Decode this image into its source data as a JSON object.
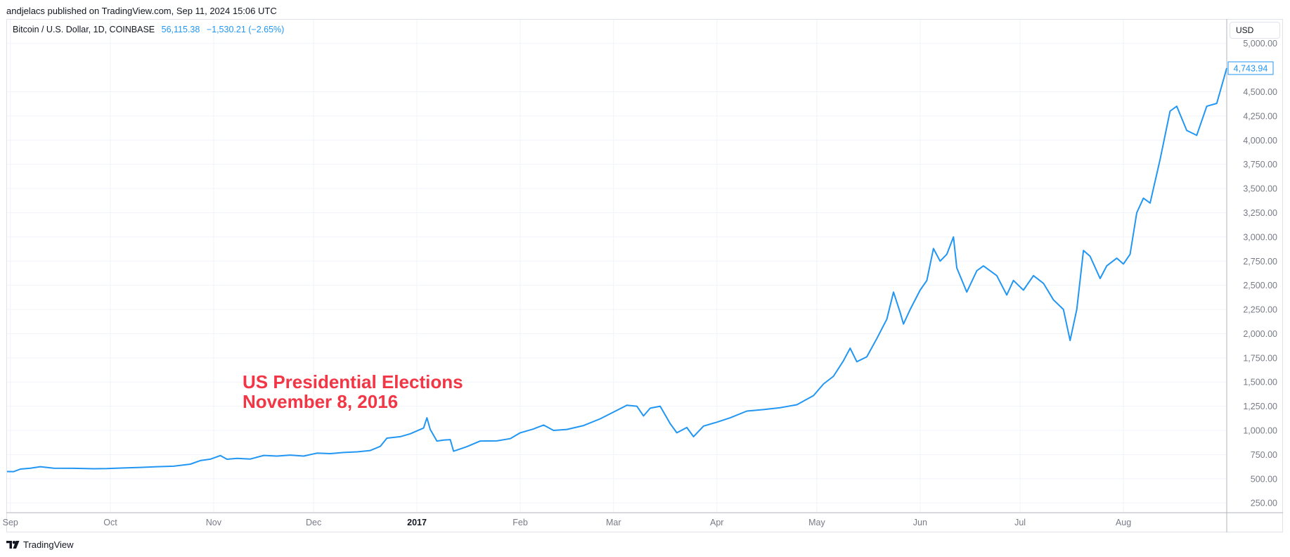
{
  "header": {
    "published": "andjelacs published on TradingView.com, Sep 11, 2024 15:06 UTC"
  },
  "legend": {
    "symbol": "Bitcoin / U.S. Dollar, 1D, COINBASE",
    "price": "56,115.38",
    "change": "−1,530.21 (−2.65%)"
  },
  "currency_button": {
    "label": "USD"
  },
  "footer": {
    "brand": "TradingView"
  },
  "colors": {
    "line": "#2196f3",
    "annotation": "#f23645",
    "grid": "#f0f3fa"
  },
  "annotation": {
    "line1": "US Presidential Elections",
    "line2": "November 8, 2016"
  },
  "chart_data": {
    "type": "line",
    "title": "",
    "xlabel": "",
    "ylabel": "",
    "x_ticks": [
      "Sep",
      "Oct",
      "Nov",
      "Dec",
      "2017",
      "Feb",
      "Mar",
      "Apr",
      "May",
      "Jun",
      "Jul",
      "Aug"
    ],
    "x_tick_dates": [
      "2016-09-01",
      "2016-10-01",
      "2016-11-01",
      "2016-12-01",
      "2017-01-01",
      "2017-02-01",
      "2017-03-01",
      "2017-04-01",
      "2017-05-01",
      "2017-06-01",
      "2017-07-01",
      "2017-08-01"
    ],
    "y_ticks": [
      "250.00",
      "500.00",
      "750.00",
      "1,000.00",
      "1,250.00",
      "1,500.00",
      "1,750.00",
      "2,000.00",
      "2,250.00",
      "2,500.00",
      "2,750.00",
      "3,000.00",
      "3,250.00",
      "3,500.00",
      "3,750.00",
      "4,000.00",
      "4,250.00",
      "4,500.00",
      "5,000.00"
    ],
    "y_tick_values": [
      250,
      500,
      750,
      1000,
      1250,
      1500,
      1750,
      2000,
      2250,
      2500,
      2750,
      3000,
      3250,
      3500,
      3750,
      4000,
      4250,
      4500,
      5000
    ],
    "last_value_label": "4,743.94",
    "ylim": [
      150,
      5000
    ],
    "grid": true,
    "series": [
      {
        "points": [
          [
            "2016-08-31",
            575
          ],
          [
            "2016-09-02",
            574
          ],
          [
            "2016-09-04",
            600
          ],
          [
            "2016-09-07",
            610
          ],
          [
            "2016-09-10",
            625
          ],
          [
            "2016-09-14",
            610
          ],
          [
            "2016-09-20",
            608
          ],
          [
            "2016-09-26",
            604
          ],
          [
            "2016-09-30",
            605
          ],
          [
            "2016-10-05",
            612
          ],
          [
            "2016-10-10",
            618
          ],
          [
            "2016-10-15",
            625
          ],
          [
            "2016-10-20",
            630
          ],
          [
            "2016-10-25",
            651
          ],
          [
            "2016-10-28",
            688
          ],
          [
            "2016-10-31",
            703
          ],
          [
            "2016-11-03",
            740
          ],
          [
            "2016-11-05",
            702
          ],
          [
            "2016-11-08",
            711
          ],
          [
            "2016-11-12",
            704
          ],
          [
            "2016-11-16",
            741
          ],
          [
            "2016-11-20",
            735
          ],
          [
            "2016-11-24",
            745
          ],
          [
            "2016-11-28",
            735
          ],
          [
            "2016-12-02",
            765
          ],
          [
            "2016-12-06",
            760
          ],
          [
            "2016-12-10",
            772
          ],
          [
            "2016-12-14",
            778
          ],
          [
            "2016-12-18",
            792
          ],
          [
            "2016-12-21",
            835
          ],
          [
            "2016-12-23",
            920
          ],
          [
            "2016-12-27",
            935
          ],
          [
            "2016-12-30",
            965
          ],
          [
            "2017-01-01",
            995
          ],
          [
            "2017-01-03",
            1025
          ],
          [
            "2017-01-04",
            1130
          ],
          [
            "2017-01-05",
            1010
          ],
          [
            "2017-01-07",
            890
          ],
          [
            "2017-01-09",
            900
          ],
          [
            "2017-01-11",
            905
          ],
          [
            "2017-01-12",
            785
          ],
          [
            "2017-01-16",
            832
          ],
          [
            "2017-01-20",
            890
          ],
          [
            "2017-01-25",
            892
          ],
          [
            "2017-01-29",
            915
          ],
          [
            "2017-02-01",
            975
          ],
          [
            "2017-02-05",
            1015
          ],
          [
            "2017-02-08",
            1055
          ],
          [
            "2017-02-11",
            1000
          ],
          [
            "2017-02-15",
            1010
          ],
          [
            "2017-02-20",
            1050
          ],
          [
            "2017-02-25",
            1120
          ],
          [
            "2017-03-01",
            1190
          ],
          [
            "2017-03-05",
            1260
          ],
          [
            "2017-03-08",
            1250
          ],
          [
            "2017-03-10",
            1150
          ],
          [
            "2017-03-12",
            1230
          ],
          [
            "2017-03-15",
            1250
          ],
          [
            "2017-03-18",
            1070
          ],
          [
            "2017-03-20",
            975
          ],
          [
            "2017-03-23",
            1030
          ],
          [
            "2017-03-25",
            935
          ],
          [
            "2017-03-28",
            1045
          ],
          [
            "2017-04-01",
            1085
          ],
          [
            "2017-04-05",
            1130
          ],
          [
            "2017-04-10",
            1200
          ],
          [
            "2017-04-15",
            1215
          ],
          [
            "2017-04-20",
            1235
          ],
          [
            "2017-04-25",
            1265
          ],
          [
            "2017-04-30",
            1360
          ],
          [
            "2017-05-03",
            1480
          ],
          [
            "2017-05-06",
            1560
          ],
          [
            "2017-05-09",
            1720
          ],
          [
            "2017-05-11",
            1850
          ],
          [
            "2017-05-13",
            1710
          ],
          [
            "2017-05-16",
            1760
          ],
          [
            "2017-05-19",
            1950
          ],
          [
            "2017-05-22",
            2150
          ],
          [
            "2017-05-24",
            2430
          ],
          [
            "2017-05-26",
            2220
          ],
          [
            "2017-05-27",
            2100
          ],
          [
            "2017-05-29",
            2250
          ],
          [
            "2017-06-01",
            2450
          ],
          [
            "2017-06-03",
            2550
          ],
          [
            "2017-06-05",
            2880
          ],
          [
            "2017-06-07",
            2750
          ],
          [
            "2017-06-09",
            2820
          ],
          [
            "2017-06-11",
            3000
          ],
          [
            "2017-06-12",
            2680
          ],
          [
            "2017-06-15",
            2430
          ],
          [
            "2017-06-18",
            2650
          ],
          [
            "2017-06-20",
            2700
          ],
          [
            "2017-06-24",
            2600
          ],
          [
            "2017-06-27",
            2400
          ],
          [
            "2017-06-29",
            2550
          ],
          [
            "2017-07-02",
            2450
          ],
          [
            "2017-07-05",
            2600
          ],
          [
            "2017-07-08",
            2520
          ],
          [
            "2017-07-11",
            2350
          ],
          [
            "2017-07-14",
            2250
          ],
          [
            "2017-07-16",
            1930
          ],
          [
            "2017-07-18",
            2250
          ],
          [
            "2017-07-20",
            2860
          ],
          [
            "2017-07-22",
            2800
          ],
          [
            "2017-07-25",
            2570
          ],
          [
            "2017-07-27",
            2700
          ],
          [
            "2017-07-30",
            2780
          ],
          [
            "2017-08-01",
            2720
          ],
          [
            "2017-08-03",
            2820
          ],
          [
            "2017-08-05",
            3250
          ],
          [
            "2017-08-07",
            3400
          ],
          [
            "2017-08-09",
            3350
          ],
          [
            "2017-08-12",
            3800
          ],
          [
            "2017-08-15",
            4300
          ],
          [
            "2017-08-17",
            4350
          ],
          [
            "2017-08-20",
            4100
          ],
          [
            "2017-08-23",
            4050
          ],
          [
            "2017-08-26",
            4350
          ],
          [
            "2017-08-29",
            4380
          ],
          [
            "2017-09-01",
            4743.94
          ]
        ]
      }
    ]
  }
}
